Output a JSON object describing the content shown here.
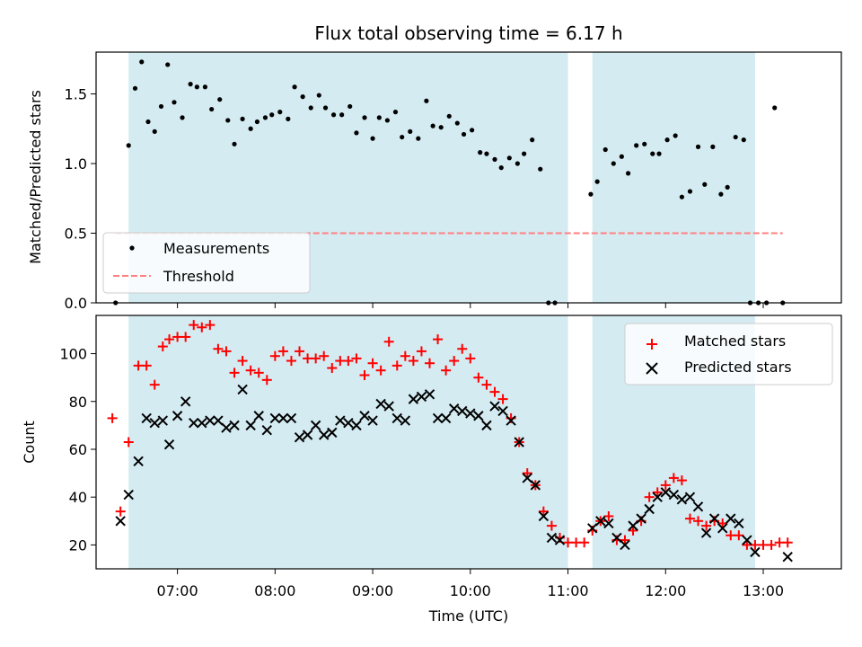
{
  "chart_data": [
    {
      "type": "scatter",
      "title": "Flux total observing time = 6.17 h",
      "xlabel": "",
      "ylabel": "Matched/Predicted stars",
      "ylim": [
        0,
        1.8
      ],
      "yticks": [
        0.0,
        0.5,
        1.0,
        1.5
      ],
      "ytick_labels": [
        "0.0",
        "0.5",
        "1.0",
        "1.5"
      ],
      "xlim": [
        "06:10",
        "13:48"
      ],
      "shaded_intervals": [
        [
          "06:30",
          "11:00"
        ],
        [
          "11:15",
          "12:55"
        ]
      ],
      "shade_color": "#add8e6",
      "legend_position": "lower-left",
      "series": [
        {
          "name": "Measurements",
          "kind": "points",
          "color": "#000000",
          "points": [
            [
              "06:22",
              0.0
            ],
            [
              "06:30",
              1.13
            ],
            [
              "06:34",
              1.54
            ],
            [
              "06:38",
              1.73
            ],
            [
              "06:42",
              1.3
            ],
            [
              "06:46",
              1.23
            ],
            [
              "06:50",
              1.41
            ],
            [
              "06:54",
              1.71
            ],
            [
              "06:58",
              1.44
            ],
            [
              "07:03",
              1.33
            ],
            [
              "07:08",
              1.57
            ],
            [
              "07:12",
              1.55
            ],
            [
              "07:17",
              1.55
            ],
            [
              "07:21",
              1.39
            ],
            [
              "07:26",
              1.46
            ],
            [
              "07:31",
              1.31
            ],
            [
              "07:35",
              1.14
            ],
            [
              "07:40",
              1.32
            ],
            [
              "07:45",
              1.25
            ],
            [
              "07:49",
              1.3
            ],
            [
              "07:54",
              1.33
            ],
            [
              "07:58",
              1.35
            ],
            [
              "08:03",
              1.37
            ],
            [
              "08:08",
              1.32
            ],
            [
              "08:12",
              1.55
            ],
            [
              "08:17",
              1.48
            ],
            [
              "08:22",
              1.4
            ],
            [
              "08:27",
              1.49
            ],
            [
              "08:31",
              1.4
            ],
            [
              "08:36",
              1.35
            ],
            [
              "08:41",
              1.35
            ],
            [
              "08:46",
              1.41
            ],
            [
              "08:50",
              1.22
            ],
            [
              "08:55",
              1.33
            ],
            [
              "09:00",
              1.18
            ],
            [
              "09:04",
              1.33
            ],
            [
              "09:09",
              1.31
            ],
            [
              "09:14",
              1.37
            ],
            [
              "09:18",
              1.19
            ],
            [
              "09:23",
              1.23
            ],
            [
              "09:28",
              1.18
            ],
            [
              "09:33",
              1.45
            ],
            [
              "09:37",
              1.27
            ],
            [
              "09:42",
              1.26
            ],
            [
              "09:47",
              1.34
            ],
            [
              "09:52",
              1.29
            ],
            [
              "09:56",
              1.21
            ],
            [
              "10:01",
              1.24
            ],
            [
              "10:06",
              1.08
            ],
            [
              "10:10",
              1.07
            ],
            [
              "10:15",
              1.03
            ],
            [
              "10:19",
              0.97
            ],
            [
              "10:24",
              1.04
            ],
            [
              "10:29",
              1.0
            ],
            [
              "10:33",
              1.07
            ],
            [
              "10:38",
              1.17
            ],
            [
              "10:43",
              0.96
            ],
            [
              "10:48",
              0.0
            ],
            [
              "10:52",
              0.0
            ],
            [
              "11:14",
              0.78
            ],
            [
              "11:18",
              0.87
            ],
            [
              "11:23",
              1.1
            ],
            [
              "11:28",
              1.0
            ],
            [
              "11:33",
              1.05
            ],
            [
              "11:37",
              0.93
            ],
            [
              "11:42",
              1.13
            ],
            [
              "11:47",
              1.14
            ],
            [
              "11:52",
              1.07
            ],
            [
              "11:56",
              1.07
            ],
            [
              "12:01",
              1.17
            ],
            [
              "12:06",
              1.2
            ],
            [
              "12:10",
              0.76
            ],
            [
              "12:15",
              0.8
            ],
            [
              "12:20",
              1.12
            ],
            [
              "12:24",
              0.85
            ],
            [
              "12:29",
              1.12
            ],
            [
              "12:34",
              0.78
            ],
            [
              "12:38",
              0.83
            ],
            [
              "12:43",
              1.19
            ],
            [
              "12:48",
              1.17
            ],
            [
              "12:52",
              0.0
            ],
            [
              "12:57",
              0.0
            ],
            [
              "13:02",
              0.0
            ],
            [
              "13:07",
              1.4
            ],
            [
              "13:12",
              0.0
            ]
          ]
        },
        {
          "name": "Threshold",
          "kind": "dashed-line",
          "color": "#ff7f7f",
          "value": 0.5,
          "x_range": [
            "06:22",
            "13:12"
          ]
        }
      ]
    },
    {
      "type": "scatter",
      "title": "",
      "xlabel": "Time (UTC)",
      "ylabel": "Count",
      "ylim": [
        10,
        116
      ],
      "yticks": [
        20,
        40,
        60,
        80,
        100
      ],
      "ytick_labels": [
        "20",
        "40",
        "60",
        "80",
        "100"
      ],
      "xlim": [
        "06:10",
        "13:48"
      ],
      "xticks": [
        "07:00",
        "08:00",
        "09:00",
        "10:00",
        "11:00",
        "12:00",
        "13:00"
      ],
      "shaded_intervals": [
        [
          "06:30",
          "11:00"
        ],
        [
          "11:15",
          "12:55"
        ]
      ],
      "shade_color": "#add8e6",
      "legend_position": "upper-right",
      "series": [
        {
          "name": "Matched stars",
          "kind": "plus",
          "color": "#ff0000",
          "points": [
            [
              "06:20",
              73
            ],
            [
              "06:25",
              34
            ],
            [
              "06:30",
              63
            ],
            [
              "06:36",
              95
            ],
            [
              "06:41",
              95
            ],
            [
              "06:46",
              87
            ],
            [
              "06:51",
              103
            ],
            [
              "06:55",
              106
            ],
            [
              "07:00",
              107
            ],
            [
              "07:05",
              107
            ],
            [
              "07:10",
              112
            ],
            [
              "07:15",
              111
            ],
            [
              "07:20",
              112
            ],
            [
              "07:25",
              102
            ],
            [
              "07:30",
              101
            ],
            [
              "07:35",
              92
            ],
            [
              "07:40",
              97
            ],
            [
              "07:45",
              93
            ],
            [
              "07:50",
              92
            ],
            [
              "07:55",
              89
            ],
            [
              "08:00",
              99
            ],
            [
              "08:05",
              101
            ],
            [
              "08:10",
              97
            ],
            [
              "08:15",
              101
            ],
            [
              "08:20",
              98
            ],
            [
              "08:25",
              98
            ],
            [
              "08:30",
              99
            ],
            [
              "08:35",
              94
            ],
            [
              "08:40",
              97
            ],
            [
              "08:45",
              97
            ],
            [
              "08:50",
              98
            ],
            [
              "08:55",
              91
            ],
            [
              "09:00",
              96
            ],
            [
              "09:05",
              93
            ],
            [
              "09:10",
              105
            ],
            [
              "09:15",
              95
            ],
            [
              "09:20",
              99
            ],
            [
              "09:25",
              97
            ],
            [
              "09:30",
              101
            ],
            [
              "09:35",
              96
            ],
            [
              "09:40",
              106
            ],
            [
              "09:45",
              93
            ],
            [
              "09:50",
              97
            ],
            [
              "09:55",
              102
            ],
            [
              "10:00",
              98
            ],
            [
              "10:05",
              90
            ],
            [
              "10:10",
              87
            ],
            [
              "10:15",
              84
            ],
            [
              "10:20",
              81
            ],
            [
              "10:25",
              73
            ],
            [
              "10:30",
              63
            ],
            [
              "10:35",
              50
            ],
            [
              "10:40",
              45
            ],
            [
              "10:45",
              34
            ],
            [
              "10:50",
              28
            ],
            [
              "10:55",
              23
            ],
            [
              "11:00",
              21
            ],
            [
              "11:05",
              21
            ],
            [
              "11:10",
              21
            ],
            [
              "11:15",
              26
            ],
            [
              "11:20",
              30
            ],
            [
              "11:25",
              32
            ],
            [
              "11:30",
              22
            ],
            [
              "11:35",
              22
            ],
            [
              "11:40",
              26
            ],
            [
              "11:45",
              30
            ],
            [
              "11:50",
              40
            ],
            [
              "11:55",
              42
            ],
            [
              "12:00",
              45
            ],
            [
              "12:05",
              48
            ],
            [
              "12:10",
              47
            ],
            [
              "12:15",
              31
            ],
            [
              "12:20",
              30
            ],
            [
              "12:25",
              28
            ],
            [
              "12:30",
              30
            ],
            [
              "12:35",
              29
            ],
            [
              "12:40",
              24
            ],
            [
              "12:45",
              24
            ],
            [
              "12:50",
              20
            ],
            [
              "12:55",
              20
            ],
            [
              "13:00",
              20
            ],
            [
              "13:05",
              20
            ],
            [
              "13:10",
              21
            ],
            [
              "13:15",
              21
            ]
          ]
        },
        {
          "name": "Predicted stars",
          "kind": "cross",
          "color": "#000000",
          "points": [
            [
              "06:25",
              30
            ],
            [
              "06:30",
              41
            ],
            [
              "06:36",
              55
            ],
            [
              "06:41",
              73
            ],
            [
              "06:46",
              71
            ],
            [
              "06:51",
              72
            ],
            [
              "06:55",
              62
            ],
            [
              "07:00",
              74
            ],
            [
              "07:05",
              80
            ],
            [
              "07:10",
              71
            ],
            [
              "07:15",
              71
            ],
            [
              "07:20",
              72
            ],
            [
              "07:25",
              72
            ],
            [
              "07:30",
              69
            ],
            [
              "07:35",
              70
            ],
            [
              "07:40",
              85
            ],
            [
              "07:45",
              70
            ],
            [
              "07:50",
              74
            ],
            [
              "07:55",
              68
            ],
            [
              "08:00",
              73
            ],
            [
              "08:05",
              73
            ],
            [
              "08:10",
              73
            ],
            [
              "08:15",
              65
            ],
            [
              "08:20",
              66
            ],
            [
              "08:25",
              70
            ],
            [
              "08:30",
              66
            ],
            [
              "08:35",
              67
            ],
            [
              "08:40",
              72
            ],
            [
              "08:45",
              71
            ],
            [
              "08:50",
              70
            ],
            [
              "08:55",
              74
            ],
            [
              "09:00",
              72
            ],
            [
              "09:05",
              79
            ],
            [
              "09:10",
              78
            ],
            [
              "09:15",
              73
            ],
            [
              "09:20",
              72
            ],
            [
              "09:25",
              81
            ],
            [
              "09:30",
              82
            ],
            [
              "09:35",
              83
            ],
            [
              "09:40",
              73
            ],
            [
              "09:45",
              73
            ],
            [
              "09:50",
              77
            ],
            [
              "09:55",
              76
            ],
            [
              "10:00",
              75
            ],
            [
              "10:05",
              74
            ],
            [
              "10:10",
              70
            ],
            [
              "10:15",
              78
            ],
            [
              "10:20",
              76
            ],
            [
              "10:25",
              72
            ],
            [
              "10:30",
              63
            ],
            [
              "10:35",
              48
            ],
            [
              "10:40",
              45
            ],
            [
              "10:45",
              32
            ],
            [
              "10:50",
              23
            ],
            [
              "10:55",
              22
            ],
            [
              "11:15",
              27
            ],
            [
              "11:20",
              30
            ],
            [
              "11:25",
              29
            ],
            [
              "11:30",
              23
            ],
            [
              "11:35",
              20
            ],
            [
              "11:40",
              28
            ],
            [
              "11:45",
              31
            ],
            [
              "11:50",
              35
            ],
            [
              "11:55",
              40
            ],
            [
              "12:00",
              42
            ],
            [
              "12:05",
              41
            ],
            [
              "12:10",
              39
            ],
            [
              "12:15",
              40
            ],
            [
              "12:20",
              36
            ],
            [
              "12:25",
              25
            ],
            [
              "12:30",
              31
            ],
            [
              "12:35",
              27
            ],
            [
              "12:40",
              31
            ],
            [
              "12:45",
              29
            ],
            [
              "12:50",
              22
            ],
            [
              "12:55",
              17
            ],
            [
              "13:15",
              15
            ]
          ]
        }
      ]
    }
  ]
}
